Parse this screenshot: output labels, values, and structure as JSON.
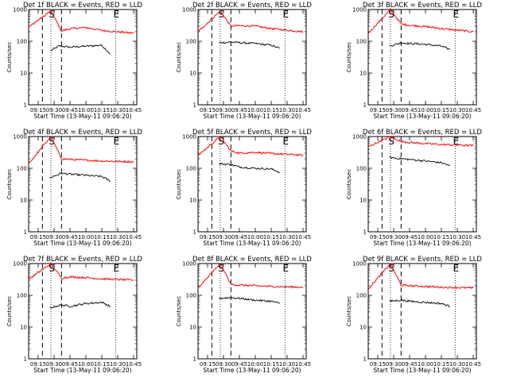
{
  "chart_data": [
    {
      "type": "line",
      "title": "Det 1f BLACK = Events, RED = LLD",
      "xlabel": "Start Time (13-May-11 09:06:20)",
      "ylabel": "Counts/sec",
      "y_scale": "log",
      "ylim": [
        1,
        1000
      ],
      "x_ticks": [
        "09:15",
        "09:30",
        "09:45",
        "10:00",
        "10:15",
        "10:30",
        "10:45"
      ],
      "y_ticks": [
        "1",
        "10",
        "100",
        "1000"
      ],
      "markers": [
        {
          "label": "S",
          "x": "09:27"
        },
        {
          "label": "E",
          "x": "10:28"
        }
      ],
      "series": [
        {
          "name": "Events",
          "color": "#000000",
          "x": [
            "09:27",
            "09:34",
            "09:37",
            "09:45",
            "10:00",
            "10:15",
            "10:23"
          ],
          "values": [
            50,
            70,
            70,
            65,
            70,
            75,
            40
          ]
        },
        {
          "name": "LLD",
          "color": "#ff0000",
          "x": [
            "09:06",
            "09:27",
            "09:37",
            "09:45",
            "10:00",
            "10:15",
            "10:45"
          ],
          "values": [
            280,
            900,
            210,
            250,
            270,
            220,
            180
          ]
        }
      ]
    },
    {
      "type": "line",
      "title": "Det 2f BLACK = Events, RED = LLD",
      "xlabel": "Start Time (13-May-11 09:06:20)",
      "ylabel": "Counts/sec",
      "y_scale": "log",
      "ylim": [
        1,
        1000
      ],
      "x_ticks": [
        "09:15",
        "09:30",
        "09:45",
        "10:00",
        "10:15",
        "10:30",
        "10:45"
      ],
      "y_ticks": [
        "1",
        "10",
        "100",
        "1000"
      ],
      "markers": [
        {
          "label": "S",
          "x": "09:27"
        },
        {
          "label": "E",
          "x": "10:28"
        }
      ],
      "series": [
        {
          "name": "Events",
          "color": "#000000",
          "x": [
            "09:26",
            "09:37",
            "09:45",
            "10:00",
            "10:15",
            "10:23"
          ],
          "values": [
            90,
            95,
            90,
            85,
            75,
            60
          ]
        },
        {
          "name": "LLD",
          "color": "#ff0000",
          "x": [
            "09:06",
            "09:27",
            "09:37",
            "09:45",
            "10:00",
            "10:15",
            "10:45"
          ],
          "values": [
            200,
            900,
            300,
            310,
            300,
            250,
            200
          ]
        }
      ]
    },
    {
      "type": "line",
      "title": "Det 3f BLACK = Events, RED = LLD",
      "xlabel": "Start Time (13-May-11 09:06:20)",
      "ylabel": "Counts/sec",
      "y_scale": "log",
      "ylim": [
        1,
        1000
      ],
      "x_ticks": [
        "09:15",
        "09:30",
        "09:45",
        "10:00",
        "10:15",
        "10:30",
        "10:45"
      ],
      "y_ticks": [
        "1",
        "10",
        "100",
        "1000"
      ],
      "markers": [
        {
          "label": "S",
          "x": "09:27"
        },
        {
          "label": "E",
          "x": "10:28"
        }
      ],
      "series": [
        {
          "name": "Events",
          "color": "#000000",
          "x": [
            "09:26",
            "09:37",
            "09:45",
            "10:00",
            "10:15",
            "10:23"
          ],
          "values": [
            70,
            90,
            85,
            80,
            70,
            55
          ]
        },
        {
          "name": "LLD",
          "color": "#ff0000",
          "x": [
            "09:06",
            "09:27",
            "09:37",
            "09:45",
            "10:00",
            "10:15",
            "10:45"
          ],
          "values": [
            180,
            1000,
            350,
            320,
            290,
            250,
            200
          ]
        }
      ]
    },
    {
      "type": "line",
      "title": "Det 4f BLACK = Events, RED = LLD",
      "xlabel": "Start Time (13-May-11 09:06:20)",
      "ylabel": "Counts/sec",
      "y_scale": "log",
      "ylim": [
        1,
        1000
      ],
      "x_ticks": [
        "09:15",
        "09:30",
        "09:45",
        "10:00",
        "10:15",
        "10:30",
        "10:45"
      ],
      "y_ticks": [
        "1",
        "10",
        "100",
        "1000"
      ],
      "markers": [
        {
          "label": "S",
          "x": "09:27"
        },
        {
          "label": "E",
          "x": "10:28"
        }
      ],
      "series": [
        {
          "name": "Events",
          "color": "#000000",
          "x": [
            "09:26",
            "09:37",
            "09:45",
            "10:00",
            "10:15",
            "10:23"
          ],
          "values": [
            50,
            70,
            65,
            60,
            55,
            40
          ]
        },
        {
          "name": "LLD",
          "color": "#ff0000",
          "x": [
            "09:06",
            "09:27",
            "09:37",
            "09:45",
            "10:00",
            "10:15",
            "10:45"
          ],
          "values": [
            140,
            1000,
            200,
            190,
            180,
            170,
            160
          ]
        }
      ]
    },
    {
      "type": "line",
      "title": "Det 5f BLACK = Events, RED = LLD",
      "xlabel": "Start Time (13-May-11 09:06:20)",
      "ylabel": "Counts/sec",
      "y_scale": "log",
      "ylim": [
        1,
        1000
      ],
      "x_ticks": [
        "09:15",
        "09:30",
        "09:45",
        "10:00",
        "10:15",
        "10:30",
        "10:45"
      ],
      "y_ticks": [
        "1",
        "10",
        "100",
        "1000"
      ],
      "markers": [
        {
          "label": "S",
          "x": "09:27"
        },
        {
          "label": "E",
          "x": "10:28"
        }
      ],
      "series": [
        {
          "name": "Events",
          "color": "#000000",
          "x": [
            "09:26",
            "09:37",
            "09:45",
            "10:00",
            "10:15",
            "10:23"
          ],
          "values": [
            140,
            130,
            110,
            100,
            95,
            75
          ]
        },
        {
          "name": "LLD",
          "color": "#ff0000",
          "x": [
            "09:06",
            "09:27",
            "09:37",
            "09:45",
            "10:00",
            "10:15",
            "10:45"
          ],
          "values": [
            250,
            1000,
            350,
            300,
            320,
            290,
            260
          ]
        }
      ]
    },
    {
      "type": "line",
      "title": "Det 6f BLACK = Events, RED = LLD",
      "xlabel": "Start Time (13-May-11 09:06:20)",
      "ylabel": "Counts/sec",
      "y_scale": "log",
      "ylim": [
        1,
        1000
      ],
      "x_ticks": [
        "09:15",
        "09:30",
        "09:45",
        "10:00",
        "10:15",
        "10:30",
        "10:45"
      ],
      "y_ticks": [
        "1",
        "10",
        "100",
        "1000"
      ],
      "markers": [
        {
          "label": "S",
          "x": "09:27"
        },
        {
          "label": "E",
          "x": "10:28"
        }
      ],
      "series": [
        {
          "name": "Events",
          "color": "#000000",
          "x": [
            "09:26",
            "09:37",
            "09:45",
            "10:00",
            "10:15",
            "10:23"
          ],
          "values": [
            220,
            200,
            190,
            170,
            150,
            120
          ]
        },
        {
          "name": "LLD",
          "color": "#ff0000",
          "x": [
            "09:06",
            "09:27",
            "09:37",
            "09:45",
            "10:00",
            "10:15",
            "10:45"
          ],
          "values": [
            480,
            1000,
            700,
            650,
            600,
            560,
            520
          ]
        }
      ]
    },
    {
      "type": "line",
      "title": "Det 7f BLACK = Events, RED = LLD",
      "xlabel": "Start Time (13-May-11 09:06:20)",
      "ylabel": "Counts/sec",
      "y_scale": "log",
      "ylim": [
        1,
        1000
      ],
      "x_ticks": [
        "09:15",
        "09:30",
        "09:45",
        "10:00",
        "10:15",
        "10:30",
        "10:45"
      ],
      "y_ticks": [
        "1",
        "10",
        "100",
        "1000"
      ],
      "markers": [
        {
          "label": "S",
          "x": "09:27"
        },
        {
          "label": "E",
          "x": "10:28"
        }
      ],
      "series": [
        {
          "name": "Events",
          "color": "#000000",
          "x": [
            "09:26",
            "09:37",
            "09:45",
            "10:00",
            "10:15",
            "10:23"
          ],
          "values": [
            40,
            50,
            45,
            55,
            60,
            45
          ]
        },
        {
          "name": "LLD",
          "color": "#ff0000",
          "x": [
            "09:06",
            "09:27",
            "09:37",
            "09:45",
            "10:00",
            "10:15",
            "10:45"
          ],
          "values": [
            320,
            1000,
            350,
            380,
            360,
            330,
            300
          ]
        }
      ]
    },
    {
      "type": "line",
      "title": "Det 8f BLACK = Events, RED = LLD",
      "xlabel": "Start Time (13-May-11 09:06:20)",
      "ylabel": "Counts/sec",
      "y_scale": "log",
      "ylim": [
        1,
        1000
      ],
      "x_ticks": [
        "09:15",
        "09:30",
        "09:45",
        "10:00",
        "10:15",
        "10:30",
        "10:45"
      ],
      "y_ticks": [
        "1",
        "10",
        "100",
        "1000"
      ],
      "markers": [
        {
          "label": "S",
          "x": "09:27"
        },
        {
          "label": "E",
          "x": "10:28"
        }
      ],
      "series": [
        {
          "name": "Events",
          "color": "#000000",
          "x": [
            "09:26",
            "09:37",
            "09:45",
            "10:00",
            "10:15",
            "10:23"
          ],
          "values": [
            80,
            85,
            80,
            70,
            65,
            55
          ]
        },
        {
          "name": "LLD",
          "color": "#ff0000",
          "x": [
            "09:06",
            "09:27",
            "09:37",
            "09:45",
            "10:00",
            "10:15",
            "10:45"
          ],
          "values": [
            170,
            1000,
            220,
            210,
            200,
            190,
            180
          ]
        }
      ]
    },
    {
      "type": "line",
      "title": "Det 9f BLACK = Events, RED = LLD",
      "xlabel": "Start Time (13-May-11 09:06:20)",
      "ylabel": "Counts/sec",
      "y_scale": "log",
      "ylim": [
        1,
        1000
      ],
      "x_ticks": [
        "09:15",
        "09:30",
        "09:45",
        "10:00",
        "10:15",
        "10:30",
        "10:45"
      ],
      "y_ticks": [
        "1",
        "10",
        "100",
        "1000"
      ],
      "markers": [
        {
          "label": "S",
          "x": "09:27"
        },
        {
          "label": "E",
          "x": "10:28"
        }
      ],
      "series": [
        {
          "name": "Events",
          "color": "#000000",
          "x": [
            "09:26",
            "09:37",
            "09:45",
            "10:00",
            "10:15",
            "10:23"
          ],
          "values": [
            65,
            70,
            65,
            60,
            55,
            45
          ]
        },
        {
          "name": "LLD",
          "color": "#ff0000",
          "x": [
            "09:06",
            "09:27",
            "09:37",
            "09:45",
            "10:00",
            "10:15",
            "10:45"
          ],
          "values": [
            160,
            1000,
            210,
            200,
            190,
            180,
            170
          ]
        }
      ]
    }
  ]
}
